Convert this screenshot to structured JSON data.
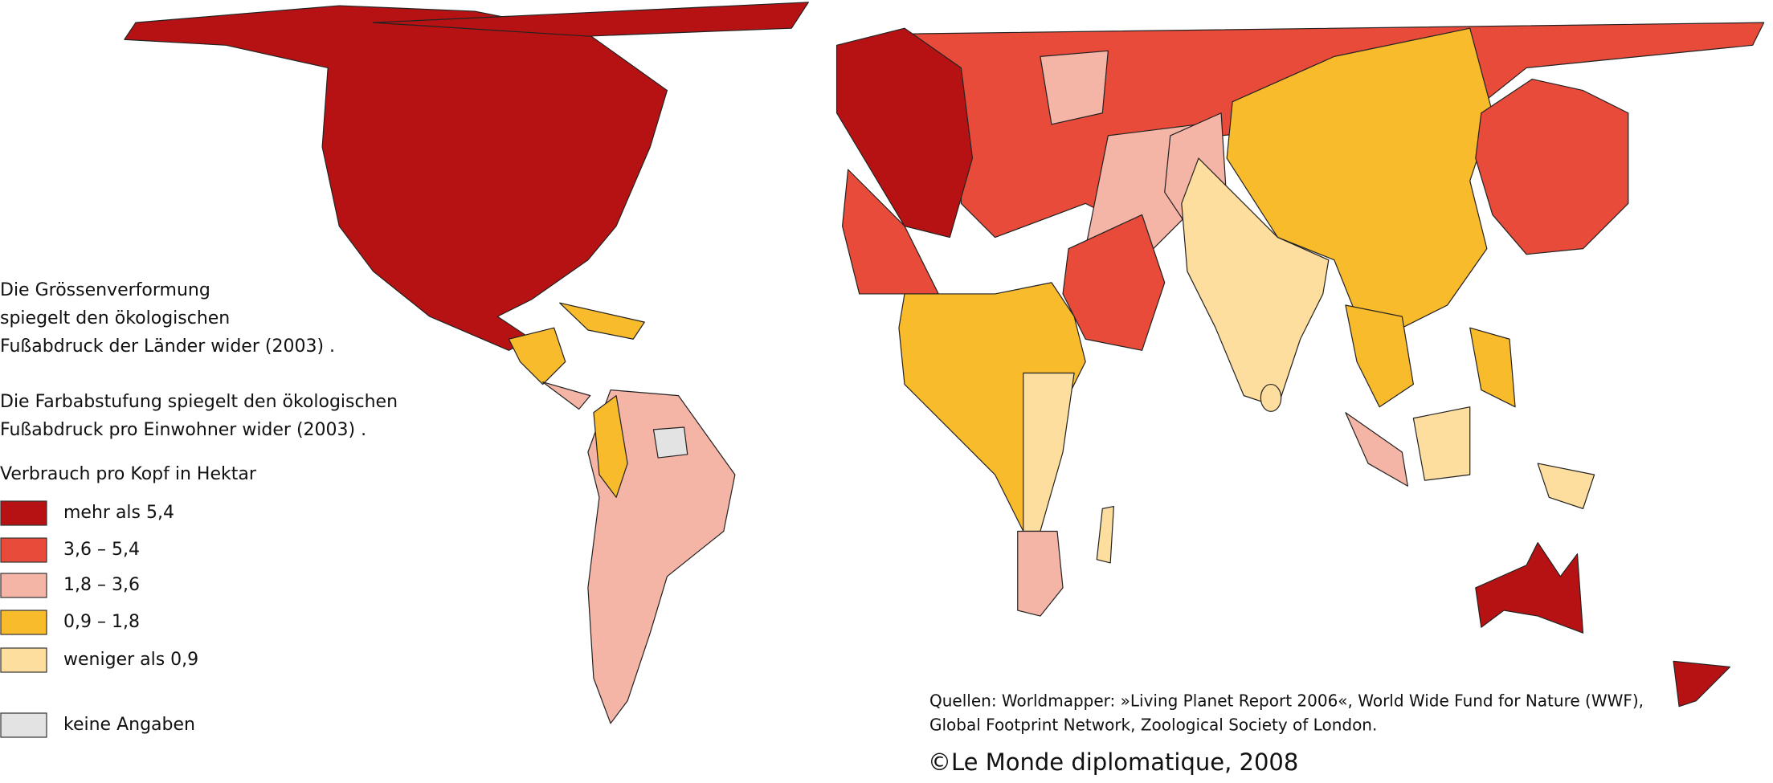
{
  "description": {
    "paragraphs": [
      [
        "Die Grössenverformung",
        "spiegelt den ökologischen",
        "Fußabdruck der Länder wider (2003)  ."
      ],
      [
        "Die Farbabstufung    spiegelt den ökologischen",
        "Fußabdruck pro Einwohner wider (2003)  ."
      ]
    ]
  },
  "legend": {
    "title": "Verbrauch pro Kopf in Hektar",
    "items": [
      {
        "label": "mehr als  5,4",
        "color": "#b71213"
      },
      {
        "label": "3,6 – 5,4",
        "color": "#e84b3a"
      },
      {
        "label": "1,8 – 3,6",
        "color": "#f4b4a6"
      },
      {
        "label": "0,9 – 1,8",
        "color": "#f8bb2c"
      },
      {
        "label": "weniger als 0,9",
        "color": "#fdde9f"
      },
      {
        "label": "keine Angaben",
        "color": "#e3e3e3"
      }
    ]
  },
  "sources": [
    "Quellen:  Worldmapper:  »Living Planet Report 2006«, World Wide Fund for Nature (WWF),",
    "Global Footprint Network, Zoological Society of London."
  ],
  "copyright": "©Le Monde diplomatique, 2008"
}
